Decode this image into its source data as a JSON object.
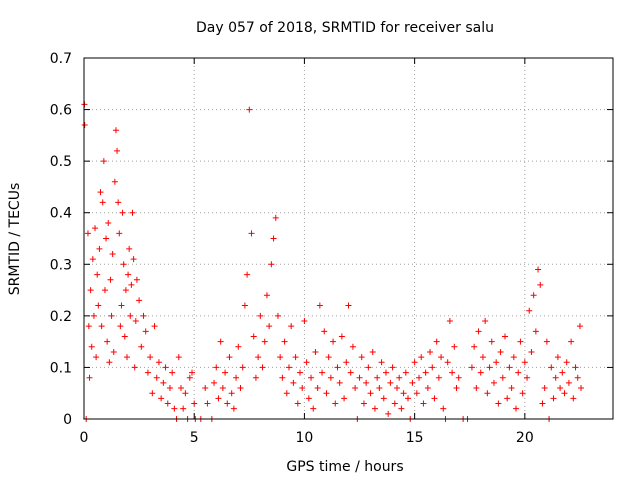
{
  "chart_data": {
    "type": "scatter",
    "title": "Day 057 of 2018, SRMTID for receiver salu",
    "xlabel": "GPS time / hours",
    "ylabel": "SRMTID / TECUs",
    "xlim": [
      0,
      24
    ],
    "ylim": [
      0,
      0.7
    ],
    "xticks": [
      0,
      5,
      10,
      15,
      20
    ],
    "xtick_labels": [
      "0",
      "5",
      "10",
      "15",
      "20"
    ],
    "yticks": [
      0,
      0.1,
      0.2,
      0.3,
      0.4,
      0.5,
      0.6,
      0.7
    ],
    "ytick_labels": [
      "0",
      "0.1",
      "0.2",
      "0.3",
      "0.4",
      "0.5",
      "0.6",
      "0.7"
    ],
    "grid": true,
    "marker": "+",
    "color": "#ff0000",
    "series": [
      {
        "name": "SRMTID",
        "points": [
          [
            0.02,
            0.61
          ],
          [
            0.03,
            0.57
          ],
          [
            0.1,
            0.0
          ],
          [
            0.18,
            0.36
          ],
          [
            0.22,
            0.18
          ],
          [
            0.25,
            0.08
          ],
          [
            0.3,
            0.25
          ],
          [
            0.35,
            0.14
          ],
          [
            0.4,
            0.31
          ],
          [
            0.45,
            0.2
          ],
          [
            0.5,
            0.37
          ],
          [
            0.55,
            0.12
          ],
          [
            0.6,
            0.28
          ],
          [
            0.65,
            0.22
          ],
          [
            0.7,
            0.33
          ],
          [
            0.75,
            0.44
          ],
          [
            0.8,
            0.18
          ],
          [
            0.85,
            0.42
          ],
          [
            0.9,
            0.5
          ],
          [
            0.95,
            0.25
          ],
          [
            1.0,
            0.35
          ],
          [
            1.05,
            0.15
          ],
          [
            1.1,
            0.38
          ],
          [
            1.15,
            0.11
          ],
          [
            1.2,
            0.27
          ],
          [
            1.25,
            0.2
          ],
          [
            1.3,
            0.32
          ],
          [
            1.35,
            0.13
          ],
          [
            1.4,
            0.46
          ],
          [
            1.45,
            0.56
          ],
          [
            1.5,
            0.52
          ],
          [
            1.55,
            0.42
          ],
          [
            1.6,
            0.36
          ],
          [
            1.65,
            0.18
          ],
          [
            1.7,
            0.22
          ],
          [
            1.75,
            0.4
          ],
          [
            1.8,
            0.3
          ],
          [
            1.85,
            0.16
          ],
          [
            1.9,
            0.25
          ],
          [
            1.95,
            0.12
          ],
          [
            2.0,
            0.28
          ],
          [
            2.05,
            0.33
          ],
          [
            2.1,
            0.2
          ],
          [
            2.15,
            0.26
          ],
          [
            2.2,
            0.4
          ],
          [
            2.25,
            0.31
          ],
          [
            2.3,
            0.1
          ],
          [
            2.35,
            0.19
          ],
          [
            2.4,
            0.27
          ],
          [
            2.5,
            0.23
          ],
          [
            2.6,
            0.14
          ],
          [
            2.7,
            0.2
          ],
          [
            2.8,
            0.17
          ],
          [
            2.9,
            0.09
          ],
          [
            3.0,
            0.12
          ],
          [
            3.1,
            0.05
          ],
          [
            3.2,
            0.18
          ],
          [
            3.3,
            0.08
          ],
          [
            3.4,
            0.11
          ],
          [
            3.5,
            0.04
          ],
          [
            3.6,
            0.07
          ],
          [
            3.7,
            0.1
          ],
          [
            3.8,
            0.03
          ],
          [
            3.9,
            0.06
          ],
          [
            4.0,
            0.09
          ],
          [
            4.1,
            0.02
          ],
          [
            4.2,
            0.0
          ],
          [
            4.3,
            0.12
          ],
          [
            4.4,
            0.06
          ],
          [
            4.5,
            0.02
          ],
          [
            4.6,
            0.05
          ],
          [
            4.7,
            0.0
          ],
          [
            4.8,
            0.08
          ],
          [
            4.9,
            0.09
          ],
          [
            5.0,
            0.03
          ],
          [
            5.05,
            0.0
          ],
          [
            5.3,
            0.0
          ],
          [
            5.5,
            0.06
          ],
          [
            5.6,
            0.03
          ],
          [
            5.8,
            0.0
          ],
          [
            5.9,
            0.07
          ],
          [
            6.0,
            0.1
          ],
          [
            6.1,
            0.04
          ],
          [
            6.2,
            0.15
          ],
          [
            6.3,
            0.06
          ],
          [
            6.4,
            0.09
          ],
          [
            6.5,
            0.03
          ],
          [
            6.6,
            0.12
          ],
          [
            6.7,
            0.05
          ],
          [
            6.8,
            0.02
          ],
          [
            6.9,
            0.08
          ],
          [
            7.0,
            0.14
          ],
          [
            7.1,
            0.06
          ],
          [
            7.2,
            0.1
          ],
          [
            7.3,
            0.22
          ],
          [
            7.4,
            0.28
          ],
          [
            7.5,
            0.6
          ],
          [
            7.6,
            0.36
          ],
          [
            7.7,
            0.16
          ],
          [
            7.8,
            0.08
          ],
          [
            7.9,
            0.12
          ],
          [
            8.0,
            0.2
          ],
          [
            8.1,
            0.1
          ],
          [
            8.2,
            0.15
          ],
          [
            8.3,
            0.24
          ],
          [
            8.4,
            0.18
          ],
          [
            8.5,
            0.3
          ],
          [
            8.6,
            0.35
          ],
          [
            8.7,
            0.39
          ],
          [
            8.8,
            0.2
          ],
          [
            8.9,
            0.12
          ],
          [
            9.0,
            0.08
          ],
          [
            9.1,
            0.15
          ],
          [
            9.2,
            0.05
          ],
          [
            9.3,
            0.1
          ],
          [
            9.4,
            0.18
          ],
          [
            9.5,
            0.07
          ],
          [
            9.6,
            0.12
          ],
          [
            9.7,
            0.03
          ],
          [
            9.8,
            0.09
          ],
          [
            9.9,
            0.06
          ],
          [
            10.0,
            0.19
          ],
          [
            10.1,
            0.11
          ],
          [
            10.2,
            0.04
          ],
          [
            10.3,
            0.08
          ],
          [
            10.4,
            0.02
          ],
          [
            10.5,
            0.13
          ],
          [
            10.6,
            0.06
          ],
          [
            10.7,
            0.22
          ],
          [
            10.8,
            0.09
          ],
          [
            10.9,
            0.17
          ],
          [
            11.0,
            0.05
          ],
          [
            11.1,
            0.12
          ],
          [
            11.2,
            0.08
          ],
          [
            11.3,
            0.15
          ],
          [
            11.4,
            0.03
          ],
          [
            11.5,
            0.1
          ],
          [
            11.6,
            0.07
          ],
          [
            11.7,
            0.16
          ],
          [
            11.8,
            0.04
          ],
          [
            11.9,
            0.11
          ],
          [
            12.0,
            0.22
          ],
          [
            12.1,
            0.09
          ],
          [
            12.2,
            0.14
          ],
          [
            12.3,
            0.06
          ],
          [
            12.4,
            0.0
          ],
          [
            12.5,
            0.08
          ],
          [
            12.6,
            0.12
          ],
          [
            12.7,
            0.03
          ],
          [
            12.8,
            0.07
          ],
          [
            12.9,
            0.1
          ],
          [
            13.0,
            0.05
          ],
          [
            13.1,
            0.13
          ],
          [
            13.2,
            0.02
          ],
          [
            13.3,
            0.08
          ],
          [
            13.4,
            0.06
          ],
          [
            13.5,
            0.11
          ],
          [
            13.6,
            0.04
          ],
          [
            13.7,
            0.09
          ],
          [
            13.8,
            0.01
          ],
          [
            13.9,
            0.07
          ],
          [
            14.0,
            0.1
          ],
          [
            14.1,
            0.03
          ],
          [
            14.2,
            0.06
          ],
          [
            14.3,
            0.08
          ],
          [
            14.4,
            0.02
          ],
          [
            14.5,
            0.05
          ],
          [
            14.6,
            0.09
          ],
          [
            14.7,
            0.04
          ],
          [
            14.8,
            0.0
          ],
          [
            14.9,
            0.07
          ],
          [
            15.0,
            0.11
          ],
          [
            15.1,
            0.05
          ],
          [
            15.2,
            0.08
          ],
          [
            15.3,
            0.12
          ],
          [
            15.4,
            0.03
          ],
          [
            15.5,
            0.09
          ],
          [
            15.6,
            0.06
          ],
          [
            15.7,
            0.13
          ],
          [
            15.8,
            0.1
          ],
          [
            15.9,
            0.04
          ],
          [
            16.0,
            0.15
          ],
          [
            16.1,
            0.08
          ],
          [
            16.2,
            0.12
          ],
          [
            16.3,
            0.02
          ],
          [
            16.4,
            0.0
          ],
          [
            16.5,
            0.11
          ],
          [
            16.6,
            0.19
          ],
          [
            16.7,
            0.09
          ],
          [
            16.8,
            0.14
          ],
          [
            16.9,
            0.06
          ],
          [
            17.0,
            0.08
          ],
          [
            17.2,
            0.0
          ],
          [
            17.4,
            0.0
          ],
          [
            17.6,
            0.1
          ],
          [
            17.7,
            0.14
          ],
          [
            17.8,
            0.06
          ],
          [
            17.9,
            0.17
          ],
          [
            18.0,
            0.09
          ],
          [
            18.1,
            0.12
          ],
          [
            18.2,
            0.19
          ],
          [
            18.3,
            0.05
          ],
          [
            18.4,
            0.1
          ],
          [
            18.5,
            0.15
          ],
          [
            18.6,
            0.07
          ],
          [
            18.7,
            0.11
          ],
          [
            18.8,
            0.03
          ],
          [
            18.9,
            0.13
          ],
          [
            19.0,
            0.08
          ],
          [
            19.1,
            0.16
          ],
          [
            19.2,
            0.04
          ],
          [
            19.3,
            0.1
          ],
          [
            19.4,
            0.06
          ],
          [
            19.5,
            0.12
          ],
          [
            19.6,
            0.02
          ],
          [
            19.7,
            0.09
          ],
          [
            19.8,
            0.15
          ],
          [
            19.9,
            0.05
          ],
          [
            20.0,
            0.11
          ],
          [
            20.1,
            0.08
          ],
          [
            20.2,
            0.21
          ],
          [
            20.3,
            0.13
          ],
          [
            20.4,
            0.24
          ],
          [
            20.5,
            0.17
          ],
          [
            20.6,
            0.29
          ],
          [
            20.7,
            0.26
          ],
          [
            20.8,
            0.03
          ],
          [
            20.9,
            0.06
          ],
          [
            21.0,
            0.15
          ],
          [
            21.1,
            0.0
          ],
          [
            21.2,
            0.1
          ],
          [
            21.3,
            0.04
          ],
          [
            21.4,
            0.08
          ],
          [
            21.5,
            0.12
          ],
          [
            21.6,
            0.06
          ],
          [
            21.7,
            0.09
          ],
          [
            21.8,
            0.05
          ],
          [
            21.9,
            0.11
          ],
          [
            22.0,
            0.07
          ],
          [
            22.1,
            0.15
          ],
          [
            22.2,
            0.04
          ],
          [
            22.3,
            0.1
          ],
          [
            22.4,
            0.08
          ],
          [
            22.5,
            0.18
          ],
          [
            22.55,
            0.06
          ]
        ]
      }
    ]
  }
}
